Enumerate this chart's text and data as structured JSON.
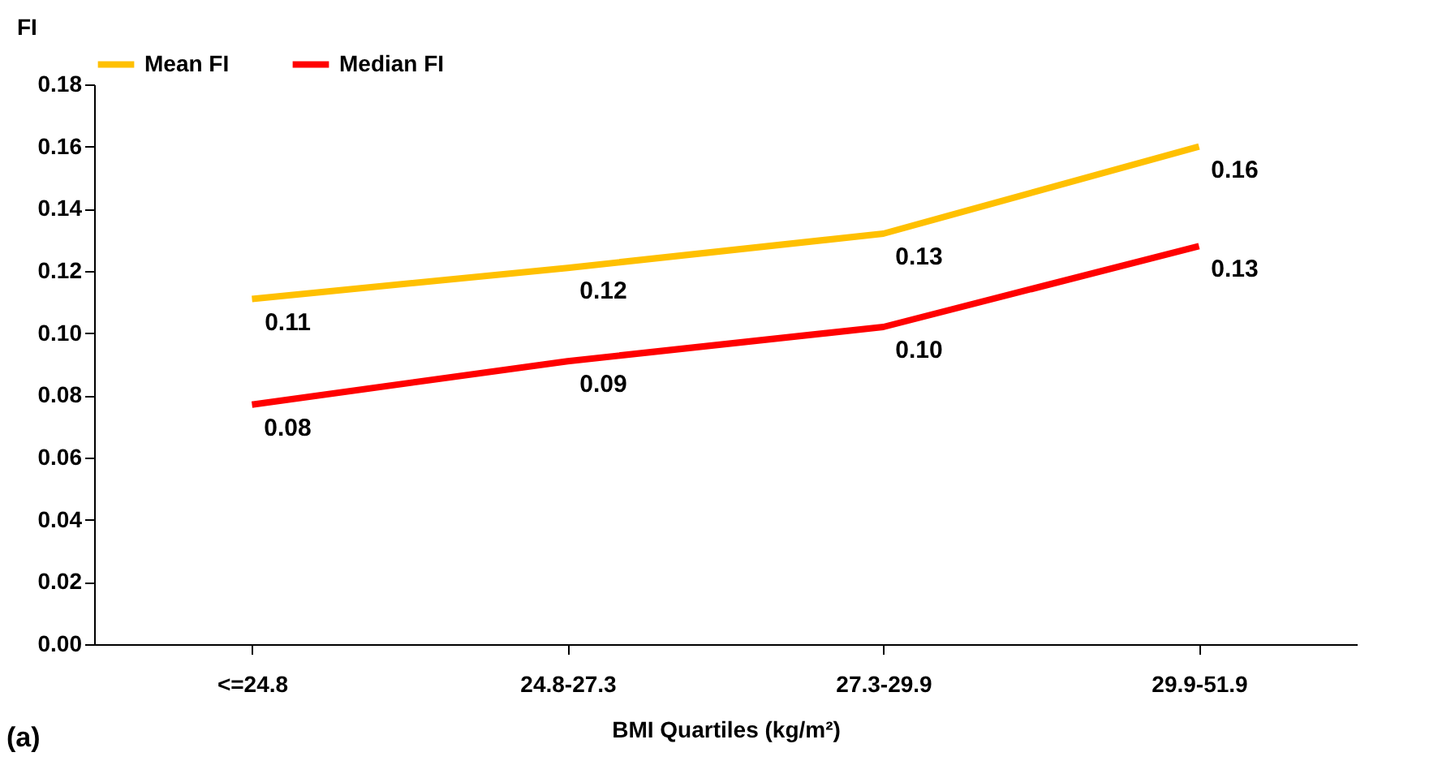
{
  "chart_data": {
    "type": "line",
    "xlabel": "BMI Quartiles (kg/m²)",
    "ylabel": "FI",
    "categories": [
      "<=24.8",
      "24.8-27.3",
      "27.3-29.9",
      "29.9-51.9"
    ],
    "series": [
      {
        "name": "Mean FI",
        "color": "#ffc000",
        "values": [
          0.111,
          0.121,
          0.132,
          0.16
        ],
        "value_labels": [
          "0.11",
          "0.12",
          "0.13",
          "0.16"
        ]
      },
      {
        "name": "Median FI",
        "color": "#ff0000",
        "values": [
          0.077,
          0.091,
          0.102,
          0.128
        ],
        "value_labels": [
          "0.08",
          "0.09",
          "0.10",
          "0.13"
        ]
      }
    ],
    "ylim": [
      0,
      0.18
    ],
    "yticks": [
      {
        "value": 0,
        "label": "0.00"
      },
      {
        "value": 0.02,
        "label": "0.02"
      },
      {
        "value": 0.04,
        "label": "0.04"
      },
      {
        "value": 0.06,
        "label": "0.06"
      },
      {
        "value": 0.08,
        "label": "0.08"
      },
      {
        "value": 0.1,
        "label": "0.10"
      },
      {
        "value": 0.12,
        "label": "0.12"
      },
      {
        "value": 0.14,
        "label": "0.14"
      },
      {
        "value": 0.16,
        "label": "0.16"
      },
      {
        "value": 0.18,
        "label": "0.18"
      }
    ],
    "grid": false,
    "legend": "top",
    "marker": "none",
    "line_style": "solid",
    "annotations": [
      "(a)"
    ]
  }
}
